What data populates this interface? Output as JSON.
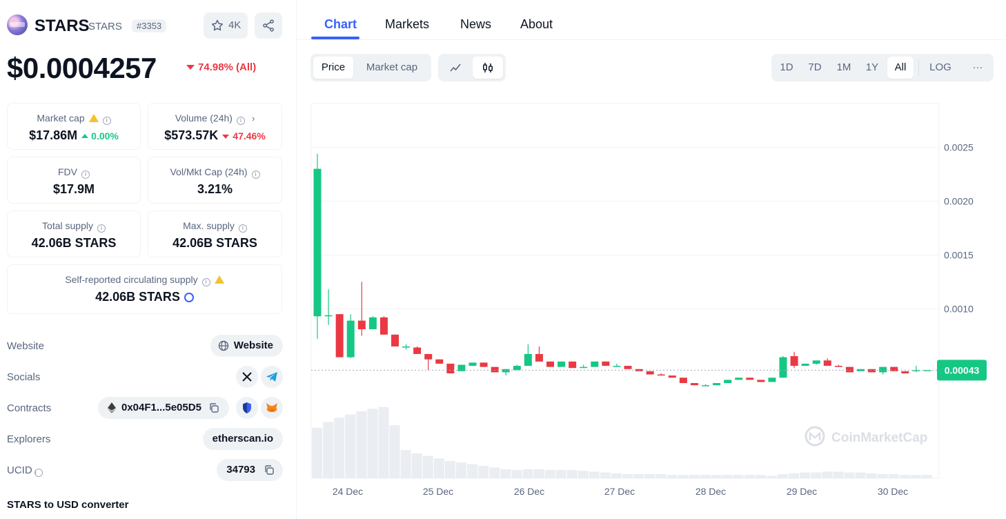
{
  "coin": {
    "name": "STARS",
    "symbol": "STARS",
    "rank": "#3353",
    "watchlist_count": "4K",
    "price": "$0.0004257",
    "price_change": "74.98% (All)"
  },
  "stats": {
    "market_cap": {
      "label": "Market cap",
      "value": "$17.86M",
      "change": "0.00%"
    },
    "volume": {
      "label": "Volume (24h)",
      "value": "$573.57K",
      "change": "47.46%"
    },
    "fdv": {
      "label": "FDV",
      "value": "$17.9M"
    },
    "vol_mkt": {
      "label": "Vol/Mkt Cap (24h)",
      "value": "3.21%"
    },
    "total_supply": {
      "label": "Total supply",
      "value": "42.06B STARS"
    },
    "max_supply": {
      "label": "Max. supply",
      "value": "42.06B STARS"
    },
    "circ_supply": {
      "label": "Self-reported circulating supply",
      "value": "42.06B STARS"
    }
  },
  "links": {
    "website_label": "Website",
    "website_btn": "Website",
    "socials_label": "Socials",
    "contracts_label": "Contracts",
    "contract_addr": "0x04F1...5e05D5",
    "explorers_label": "Explorers",
    "explorer": "etherscan.io",
    "ucid_label": "UCID",
    "ucid": "34793",
    "converter": "STARS to USD converter"
  },
  "tabs": [
    "Chart",
    "Markets",
    "News",
    "About"
  ],
  "chart_controls": {
    "type_options": [
      "Price",
      "Market cap"
    ],
    "ranges": [
      "1D",
      "7D",
      "1M",
      "1Y",
      "All"
    ],
    "log": "LOG",
    "more": "···"
  },
  "watermark": "CoinMarketCap",
  "colors": {
    "up": "#16c784",
    "down": "#ea3943",
    "accent": "#3861fb",
    "volume": "#eaedf1"
  },
  "icons": [
    "star-icon",
    "share-icon",
    "info-icon",
    "warning-icon",
    "globe-icon",
    "x-icon",
    "telegram-icon",
    "ethereum-icon",
    "copy-icon",
    "shield-icon",
    "metamask-icon",
    "line-chart-icon",
    "candle-chart-icon"
  ],
  "chart_data": {
    "type": "candlestick",
    "xlabel": "",
    "ylabel": "",
    "ylim": [
      0,
      0.003
    ],
    "y_ticks": [
      "0.0025",
      "0.0020",
      "0.0015",
      "0.0010"
    ],
    "x_ticks": [
      "24 Dec",
      "25 Dec",
      "26 Dec",
      "27 Dec",
      "28 Dec",
      "29 Dec",
      "30 Dec"
    ],
    "current_price_label": "0.00043",
    "current_price": 0.00043,
    "candles": [
      {
        "o": 0.00093,
        "c": 0.0023,
        "h": 0.00244,
        "l": 0.00072
      },
      {
        "o": 0.00093,
        "c": 0.00094,
        "h": 0.00118,
        "l": 0.00085
      },
      {
        "o": 0.00095,
        "c": 0.00055,
        "h": 0.00095,
        "l": 0.00055
      },
      {
        "o": 0.00055,
        "c": 0.00089,
        "h": 0.00095,
        "l": 0.00054
      },
      {
        "o": 0.00089,
        "c": 0.00081,
        "h": 0.00125,
        "l": 0.00075
      },
      {
        "o": 0.00081,
        "c": 0.00092,
        "h": 0.00093,
        "l": 0.00081
      },
      {
        "o": 0.00092,
        "c": 0.00076,
        "h": 0.00093,
        "l": 0.00076
      },
      {
        "o": 0.00076,
        "c": 0.00065,
        "h": 0.00076,
        "l": 0.00065
      },
      {
        "o": 0.00064,
        "c": 0.00065,
        "h": 0.00067,
        "l": 0.00062
      },
      {
        "o": 0.00064,
        "c": 0.00058,
        "h": 0.00065,
        "l": 0.00058
      },
      {
        "o": 0.00058,
        "c": 0.00053,
        "h": 0.00058,
        "l": 0.00043
      },
      {
        "o": 0.00053,
        "c": 0.00049,
        "h": 0.00053,
        "l": 0.00049
      },
      {
        "o": 0.00049,
        "c": 0.0004,
        "h": 0.00049,
        "l": 0.0004
      },
      {
        "o": 0.00042,
        "c": 0.00048,
        "h": 0.00048,
        "l": 0.00042
      },
      {
        "o": 0.00047,
        "c": 0.0005,
        "h": 0.0005,
        "l": 0.00047
      },
      {
        "o": 0.0005,
        "c": 0.00046,
        "h": 0.0005,
        "l": 0.00046
      },
      {
        "o": 0.00046,
        "c": 0.00041,
        "h": 0.00046,
        "l": 0.00041
      },
      {
        "o": 0.00041,
        "c": 0.00044,
        "h": 0.00044,
        "l": 0.00038
      },
      {
        "o": 0.00043,
        "c": 0.00047,
        "h": 0.00048,
        "l": 0.00043
      },
      {
        "o": 0.00047,
        "c": 0.00058,
        "h": 0.00067,
        "l": 0.00047
      },
      {
        "o": 0.00058,
        "c": 0.00051,
        "h": 0.00065,
        "l": 0.00051
      },
      {
        "o": 0.00051,
        "c": 0.00046,
        "h": 0.00051,
        "l": 0.00046
      },
      {
        "o": 0.00046,
        "c": 0.00051,
        "h": 0.00051,
        "l": 0.00046
      },
      {
        "o": 0.00051,
        "c": 0.00045,
        "h": 0.00051,
        "l": 0.00045
      },
      {
        "o": 0.00045,
        "c": 0.00046,
        "h": 0.00048,
        "l": 0.00045
      },
      {
        "o": 0.00046,
        "c": 0.00051,
        "h": 0.00051,
        "l": 0.00046
      },
      {
        "o": 0.00051,
        "c": 0.00047,
        "h": 0.00051,
        "l": 0.00047
      },
      {
        "o": 0.00047,
        "c": 0.00047,
        "h": 0.00049,
        "l": 0.00046
      },
      {
        "o": 0.00047,
        "c": 0.00044,
        "h": 0.00047,
        "l": 0.00044
      },
      {
        "o": 0.00044,
        "c": 0.00042,
        "h": 0.00044,
        "l": 0.00042
      },
      {
        "o": 0.00042,
        "c": 0.00039,
        "h": 0.00042,
        "l": 0.00039
      },
      {
        "o": 0.00039,
        "c": 0.00038,
        "h": 0.0004,
        "l": 0.00038
      },
      {
        "o": 0.00038,
        "c": 0.00036,
        "h": 0.00038,
        "l": 0.00036
      },
      {
        "o": 0.00036,
        "c": 0.00031,
        "h": 0.00036,
        "l": 0.00031
      },
      {
        "o": 0.00031,
        "c": 0.00029,
        "h": 0.00031,
        "l": 0.00029
      },
      {
        "o": 0.00029,
        "c": 0.00029,
        "h": 0.0003,
        "l": 0.00028
      },
      {
        "o": 0.00029,
        "c": 0.00031,
        "h": 0.00031,
        "l": 0.00029
      },
      {
        "o": 0.00031,
        "c": 0.00034,
        "h": 0.00034,
        "l": 0.00031
      },
      {
        "o": 0.00034,
        "c": 0.00036,
        "h": 0.00036,
        "l": 0.00034
      },
      {
        "o": 0.00036,
        "c": 0.00034,
        "h": 0.00036,
        "l": 0.00034
      },
      {
        "o": 0.00034,
        "c": 0.00032,
        "h": 0.00034,
        "l": 0.00032
      },
      {
        "o": 0.00032,
        "c": 0.00036,
        "h": 0.00036,
        "l": 0.00032
      },
      {
        "o": 0.00036,
        "c": 0.00055,
        "h": 0.00056,
        "l": 0.00036
      },
      {
        "o": 0.00056,
        "c": 0.00047,
        "h": 0.0006,
        "l": 0.00045
      },
      {
        "o": 0.00047,
        "c": 0.00049,
        "h": 0.00049,
        "l": 0.00047
      },
      {
        "o": 0.00049,
        "c": 0.00052,
        "h": 0.00052,
        "l": 0.00048
      },
      {
        "o": 0.00052,
        "c": 0.00047,
        "h": 0.00054,
        "l": 0.00047
      },
      {
        "o": 0.00047,
        "c": 0.00046,
        "h": 0.00048,
        "l": 0.00046
      },
      {
        "o": 0.00046,
        "c": 0.00041,
        "h": 0.00046,
        "l": 0.00041
      },
      {
        "o": 0.00042,
        "c": 0.00044,
        "h": 0.00044,
        "l": 0.00042
      },
      {
        "o": 0.00044,
        "c": 0.00041,
        "h": 0.00044,
        "l": 0.00041
      },
      {
        "o": 0.00041,
        "c": 0.00046,
        "h": 0.00046,
        "l": 0.00039
      },
      {
        "o": 0.00046,
        "c": 0.00042,
        "h": 0.00046,
        "l": 0.00042
      },
      {
        "o": 0.00042,
        "c": 0.0004,
        "h": 0.00042,
        "l": 0.0004
      },
      {
        "o": 0.00043,
        "c": 0.00043,
        "h": 0.00047,
        "l": 0.00041
      },
      {
        "o": 0.00043,
        "c": 0.00043,
        "h": 0.00043,
        "l": 0.00043
      }
    ],
    "volume_rel": [
      0.61,
      0.68,
      0.73,
      0.77,
      0.81,
      0.84,
      0.86,
      0.64,
      0.34,
      0.3,
      0.27,
      0.24,
      0.21,
      0.19,
      0.17,
      0.15,
      0.13,
      0.11,
      0.1,
      0.11,
      0.11,
      0.1,
      0.1,
      0.1,
      0.09,
      0.08,
      0.07,
      0.06,
      0.05,
      0.05,
      0.05,
      0.05,
      0.04,
      0.04,
      0.04,
      0.04,
      0.04,
      0.04,
      0.04,
      0.04,
      0.04,
      0.03,
      0.05,
      0.06,
      0.07,
      0.07,
      0.08,
      0.08,
      0.07,
      0.07,
      0.06,
      0.05,
      0.05,
      0.04,
      0.04,
      0.04
    ]
  }
}
